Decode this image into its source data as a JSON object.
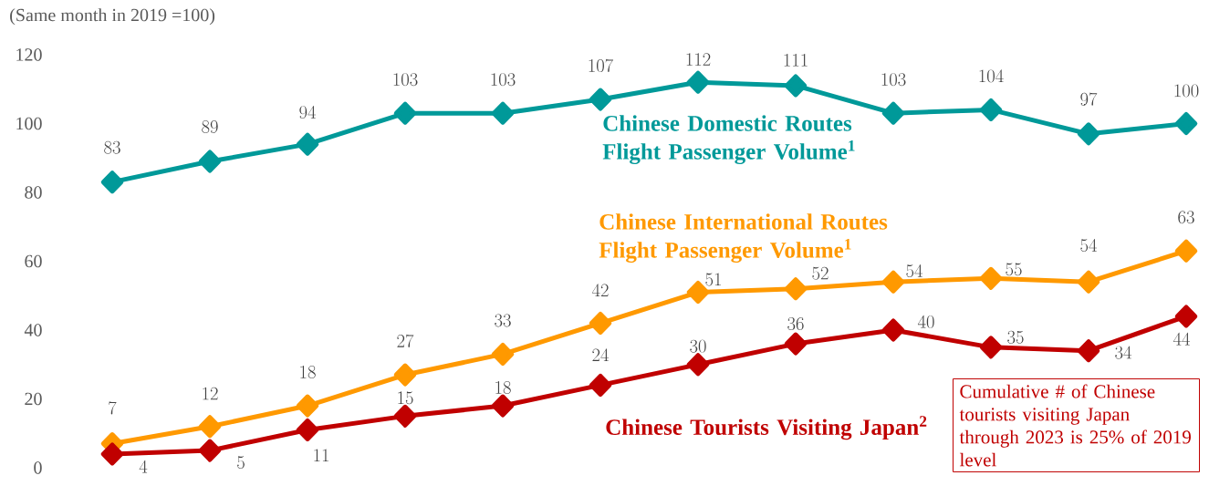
{
  "chart_data": {
    "type": "line",
    "ylabel": "(Same month in 2019 =100)",
    "categories": [
      null,
      null,
      null,
      null,
      null,
      null,
      null,
      null,
      null,
      null,
      null,
      null
    ],
    "ylim": [
      0,
      120
    ],
    "yticks": [
      0,
      20,
      40,
      60,
      80,
      100,
      120
    ],
    "tick_labels": "y",
    "marker": "diamond",
    "data_labels": true,
    "series": [
      {
        "name": "Chinese Domestic Routes Flight Passenger Volume$^{1}$",
        "color": "#009999",
        "values": [
          83,
          89,
          94,
          103,
          103,
          107,
          112,
          111,
          103,
          104,
          97,
          100
        ]
      },
      {
        "name": "Chinese International Routes Flight Passenger Volume$^{1}$",
        "color": "#ff9900",
        "values": [
          7,
          12,
          18,
          27,
          33,
          42,
          51,
          52,
          54,
          55,
          54,
          63
        ]
      },
      {
        "name": "Chinese Tourists Visiting Japan$^{2}$",
        "color": "#c00000",
        "values": [
          4,
          5,
          11,
          15,
          18,
          24,
          30,
          36,
          40,
          35,
          34,
          44
        ]
      }
    ],
    "annotations": [
      "Cumulative # of Chinese tourists visiting Japan through 2023 is 25% of 2019 level"
    ]
  }
}
